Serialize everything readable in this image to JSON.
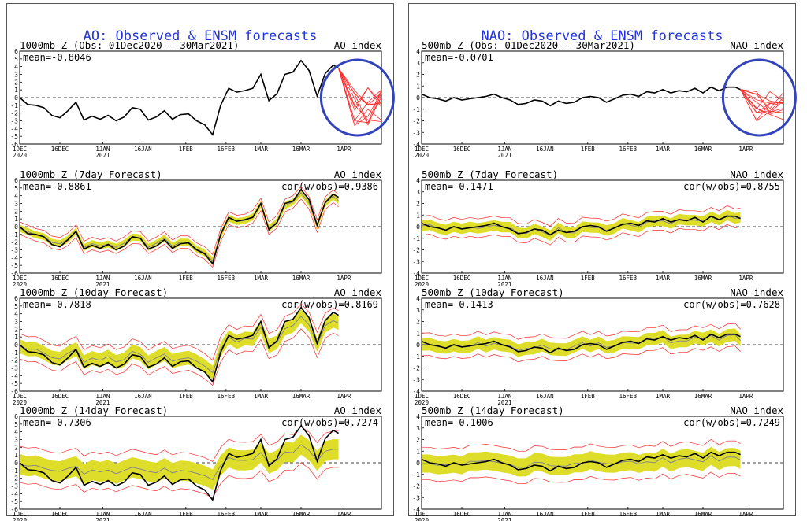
{
  "figures": [
    {
      "title": "AO: Observed & ENSM forecasts",
      "index_label": "AO index",
      "panels": [
        {
          "label": "1000mb Z (Obs: 01Dec2020 - 30Mar2021)",
          "mean": "mean=-0.8046",
          "cor": ""
        },
        {
          "label": "1000mb Z (7day Forecast)",
          "mean": "mean=-0.8861",
          "cor": "cor(w/obs)=0.9386"
        },
        {
          "label": "1000mb Z (10day Forecast)",
          "mean": "mean=-0.7818",
          "cor": "cor(w/obs)=0.8169"
        },
        {
          "label": "1000mb Z (14day Forecast)",
          "mean": "mean=-0.7306",
          "cor": "cor(w/obs)=0.7274"
        }
      ]
    },
    {
      "title": "NAO: Observed & ENSM forecasts",
      "index_label": "NAO index",
      "panels": [
        {
          "label": "500mb Z (Obs: 01Dec2020 - 30Mar2021)",
          "mean": "mean=-0.0701",
          "cor": ""
        },
        {
          "label": "500mb Z (7day Forecast)",
          "mean": "mean=-0.1471",
          "cor": "cor(w/obs)=0.8755"
        },
        {
          "label": "500mb Z (10day Forecast)",
          "mean": "mean=-0.1413",
          "cor": "cor(w/obs)=0.7628"
        },
        {
          "label": "500mb Z (14day Forecast)",
          "mean": "mean=-0.1006",
          "cor": "cor(w/obs)=0.7249"
        }
      ]
    }
  ],
  "x_ticks": [
    "1DEC",
    "16DEC",
    "1JAN",
    "16JAN",
    "1FEB",
    "16FEB",
    "1MAR",
    "16MAR",
    "1APR"
  ],
  "x_tick_years": {
    "1DEC": "2020",
    "1JAN": "2021"
  },
  "colors": {
    "observed": "#000000",
    "members": "#ff2a2a",
    "spread": "#dede2a",
    "ens_mean": "#888888",
    "title": "#2233dd",
    "highlight_circle": "#3344bb"
  },
  "chart_data": [
    {
      "type": "line",
      "title": "AO: Observed & ENSM forecasts",
      "index": "AO index",
      "ylim": [
        -6,
        6
      ],
      "y_ticks": [
        -6,
        -5,
        -4,
        -3,
        -2,
        -1,
        0,
        1,
        2,
        3,
        4,
        5,
        6
      ],
      "x_range": [
        "2020-12-01",
        "2021-04-15"
      ],
      "observed": {
        "x": [
          "2020-12-01",
          "2020-12-04",
          "2020-12-07",
          "2020-12-10",
          "2020-12-13",
          "2020-12-16",
          "2020-12-19",
          "2020-12-22",
          "2020-12-25",
          "2020-12-28",
          "2020-12-31",
          "2021-01-03",
          "2021-01-06",
          "2021-01-09",
          "2021-01-12",
          "2021-01-15",
          "2021-01-18",
          "2021-01-21",
          "2021-01-24",
          "2021-01-27",
          "2021-01-30",
          "2021-02-02",
          "2021-02-05",
          "2021-02-08",
          "2021-02-11",
          "2021-02-14",
          "2021-02-17",
          "2021-02-20",
          "2021-02-23",
          "2021-02-26",
          "2021-03-01",
          "2021-03-04",
          "2021-03-07",
          "2021-03-10",
          "2021-03-13",
          "2021-03-16",
          "2021-03-19",
          "2021-03-22",
          "2021-03-25",
          "2021-03-28",
          "2021-03-30"
        ],
        "y": [
          0.0,
          -0.9,
          -1.0,
          -1.3,
          -2.3,
          -2.6,
          -1.7,
          -0.6,
          -2.9,
          -2.4,
          -2.8,
          -2.3,
          -3.0,
          -2.5,
          -1.3,
          -1.5,
          -2.9,
          -2.5,
          -1.7,
          -2.8,
          -2.2,
          -2.1,
          -3.0,
          -3.5,
          -4.8,
          -1.0,
          1.2,
          0.7,
          0.9,
          1.2,
          3.0,
          -0.4,
          0.5,
          3.0,
          3.3,
          4.8,
          3.5,
          0.2,
          3.1,
          4.2,
          3.8
        ]
      },
      "panels": [
        {
          "name": "Obs",
          "forecast_members_x": [
            "2021-03-31",
            "2021-04-05",
            "2021-04-10",
            "2021-04-15"
          ],
          "forecast_members_y_range": [
            -3.6,
            1.5
          ],
          "highlight_circle": true
        },
        {
          "name": "7day Forecast",
          "mean": -0.8861,
          "cor": 0.9386
        },
        {
          "name": "10day Forecast",
          "mean": -0.7818,
          "cor": 0.8169
        },
        {
          "name": "14day Forecast",
          "mean": -0.7306,
          "cor": 0.7274
        }
      ]
    },
    {
      "type": "line",
      "title": "NAO: Observed & ENSM forecasts",
      "index": "NAO index",
      "ylim": [
        -4,
        4
      ],
      "y_ticks": [
        -4,
        -3,
        -2,
        -1,
        0,
        1,
        2,
        3,
        4
      ],
      "x_range": [
        "2020-12-01",
        "2021-04-15"
      ],
      "observed": {
        "x": [
          "2020-12-01",
          "2020-12-04",
          "2020-12-07",
          "2020-12-10",
          "2020-12-13",
          "2020-12-16",
          "2020-12-19",
          "2020-12-22",
          "2020-12-25",
          "2020-12-28",
          "2020-12-31",
          "2021-01-03",
          "2021-01-06",
          "2021-01-09",
          "2021-01-12",
          "2021-01-15",
          "2021-01-18",
          "2021-01-21",
          "2021-01-24",
          "2021-01-27",
          "2021-01-30",
          "2021-02-02",
          "2021-02-05",
          "2021-02-08",
          "2021-02-11",
          "2021-02-14",
          "2021-02-17",
          "2021-02-20",
          "2021-02-23",
          "2021-02-26",
          "2021-03-01",
          "2021-03-04",
          "2021-03-07",
          "2021-03-10",
          "2021-03-13",
          "2021-03-16",
          "2021-03-19",
          "2021-03-22",
          "2021-03-25",
          "2021-03-28",
          "2021-03-30"
        ],
        "y": [
          0.3,
          0.0,
          -0.1,
          -0.3,
          0.0,
          -0.2,
          -0.1,
          0.0,
          0.1,
          0.3,
          0.0,
          -0.2,
          -0.6,
          -0.5,
          -0.2,
          -0.3,
          -0.7,
          -0.3,
          -0.5,
          -0.4,
          0.0,
          0.1,
          0.0,
          -0.4,
          -0.1,
          0.2,
          0.3,
          0.1,
          0.5,
          0.4,
          0.7,
          0.4,
          0.6,
          0.5,
          0.8,
          0.4,
          0.9,
          0.6,
          0.9,
          0.9,
          0.7
        ]
      },
      "panels": [
        {
          "name": "Obs",
          "forecast_members_x": [
            "2021-03-31",
            "2021-04-05",
            "2021-04-10",
            "2021-04-15"
          ],
          "forecast_members_y_range": [
            -2.0,
            0.6
          ],
          "highlight_circle": true
        },
        {
          "name": "7day Forecast",
          "mean": -0.1471,
          "cor": 0.8755
        },
        {
          "name": "10day Forecast",
          "mean": -0.1413,
          "cor": 0.7628
        },
        {
          "name": "14day Forecast",
          "mean": -0.1006,
          "cor": 0.7249
        }
      ]
    }
  ]
}
